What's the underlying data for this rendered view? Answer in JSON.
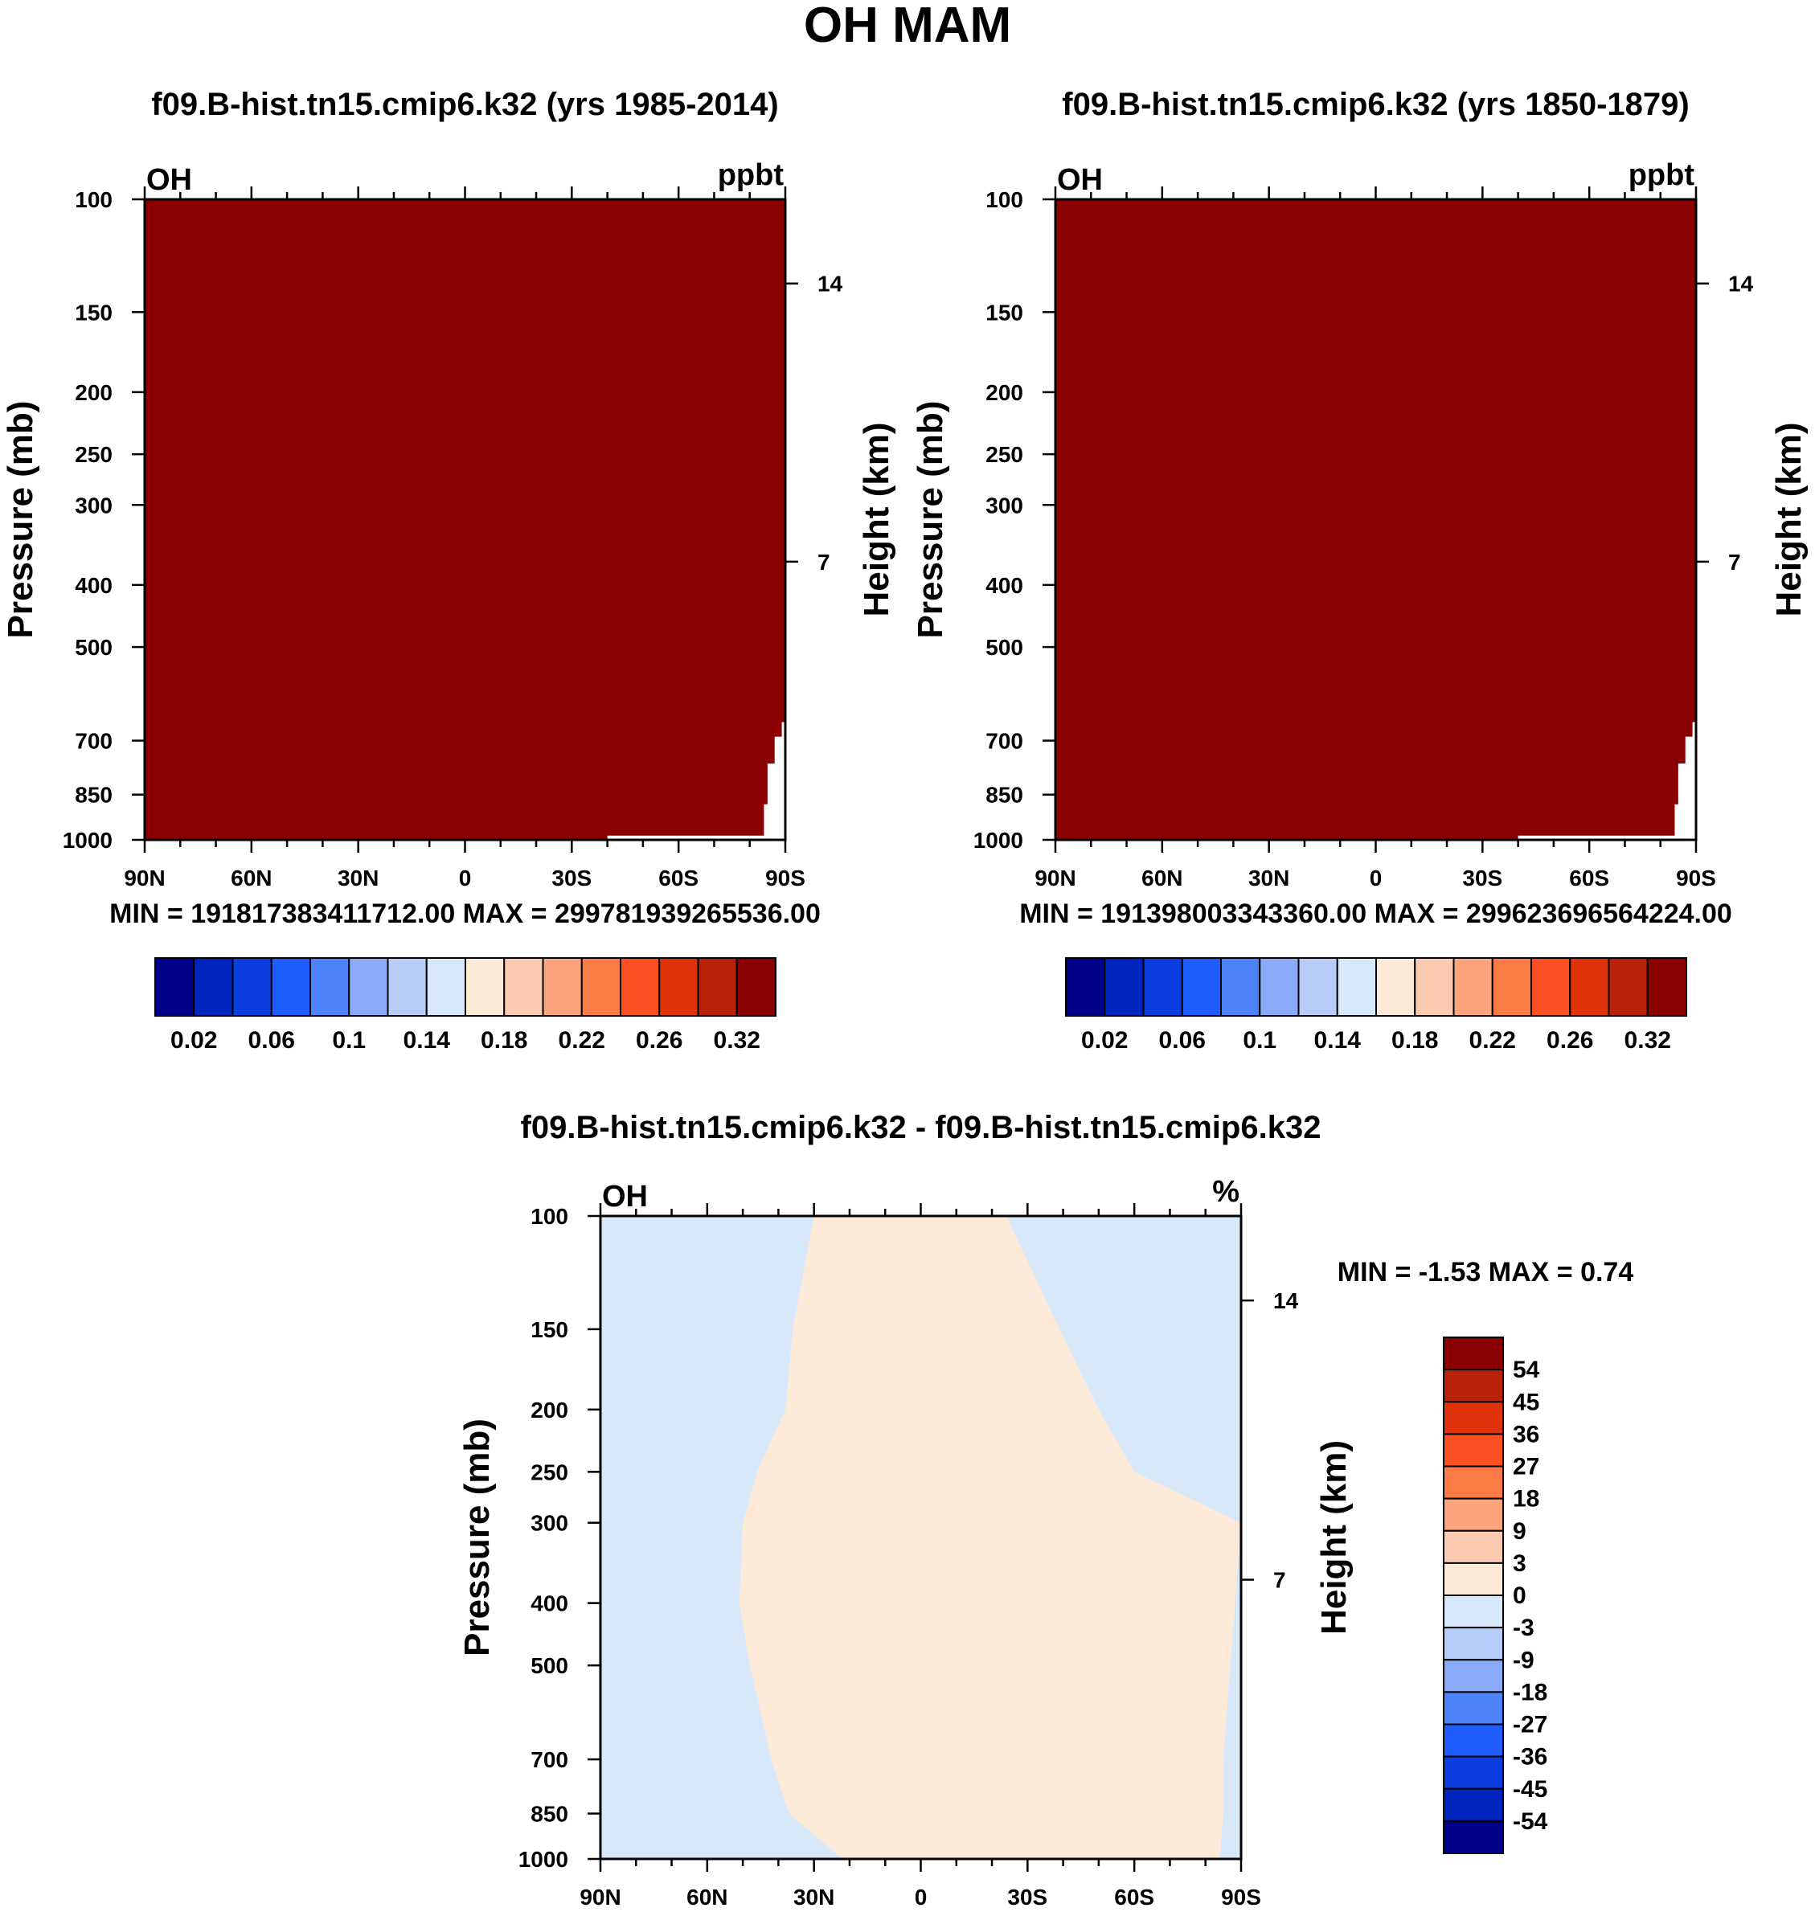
{
  "figure": {
    "title": "OH MAM"
  },
  "chart_data": [
    {
      "type": "heatmap",
      "title": "f09.B-hist.tn15.cmip6.k32 (yrs 1985-2014)",
      "variable": "OH",
      "units": "ppbt",
      "ylabel": "Pressure (mb)",
      "y2label": "Height (km)",
      "x_ticks": [
        "90N",
        "60N",
        "30N",
        "0",
        "30S",
        "60S",
        "90S"
      ],
      "y_ticks": [
        "100",
        "150",
        "200",
        "250",
        "300",
        "400",
        "500",
        "700",
        "850",
        "1000"
      ],
      "y2_ticks": [
        "14",
        "7"
      ],
      "stats": "MIN = 191817383411712.00  MAX = 299781939265536.00",
      "fill_color": "#8b0000",
      "colorbar": {
        "colors": [
          "#00008b",
          "#0024be",
          "#0a3ee0",
          "#1f5cff",
          "#4c82fa",
          "#89aaf8",
          "#b8ccfa",
          "#d8e8fb",
          "#fde9d8",
          "#fccab0",
          "#fba57f",
          "#fc7c48",
          "#fb5022",
          "#e1330b",
          "#b72208",
          "#8b0000"
        ],
        "labels": [
          "0.02",
          "0.06",
          "0.1",
          "0.14",
          "0.18",
          "0.22",
          "0.26",
          "0.32"
        ]
      }
    },
    {
      "type": "heatmap",
      "title": "f09.B-hist.tn15.cmip6.k32 (yrs 1850-1879)",
      "variable": "OH",
      "units": "ppbt",
      "ylabel": "Pressure (mb)",
      "y2label": "Height (km)",
      "x_ticks": [
        "90N",
        "60N",
        "30N",
        "0",
        "30S",
        "60S",
        "90S"
      ],
      "y_ticks": [
        "100",
        "150",
        "200",
        "250",
        "300",
        "400",
        "500",
        "700",
        "850",
        "1000"
      ],
      "y2_ticks": [
        "14",
        "7"
      ],
      "stats": "MIN = 191398003343360.00  MAX = 299623696564224.00",
      "fill_color": "#8b0000",
      "colorbar": {
        "colors": [
          "#00008b",
          "#0024be",
          "#0a3ee0",
          "#1f5cff",
          "#4c82fa",
          "#89aaf8",
          "#b8ccfa",
          "#d8e8fb",
          "#fde9d8",
          "#fccab0",
          "#fba57f",
          "#fc7c48",
          "#fb5022",
          "#e1330b",
          "#b72208",
          "#8b0000"
        ],
        "labels": [
          "0.02",
          "0.06",
          "0.1",
          "0.14",
          "0.18",
          "0.22",
          "0.26",
          "0.32"
        ]
      }
    },
    {
      "type": "heatmap",
      "title": "f09.B-hist.tn15.cmip6.k32 - f09.B-hist.tn15.cmip6.k32",
      "variable": "OH",
      "units": "%",
      "ylabel": "Pressure (mb)",
      "y2label": "Height (km)",
      "x_ticks": [
        "90N",
        "60N",
        "30N",
        "0",
        "30S",
        "60S",
        "90S"
      ],
      "y_ticks": [
        "100",
        "150",
        "200",
        "250",
        "300",
        "400",
        "500",
        "700",
        "850",
        "1000"
      ],
      "y2_ticks": [
        "14",
        "7"
      ],
      "stats": "MIN =  -1.53  MAX =   0.74",
      "background_color": "#d8e8fb",
      "positive_color": "#fde9d8",
      "positive_region_boundary": {
        "left": [
          [
            100,
            30
          ],
          [
            150,
            36
          ],
          [
            200,
            38
          ],
          [
            250,
            46
          ],
          [
            300,
            50
          ],
          [
            400,
            51
          ],
          [
            500,
            48
          ],
          [
            700,
            42
          ],
          [
            850,
            37
          ],
          [
            1000,
            22
          ]
        ],
        "right": [
          [
            100,
            -24
          ],
          [
            150,
            -39
          ],
          [
            200,
            -50
          ],
          [
            250,
            -60
          ],
          [
            300,
            -90
          ],
          [
            700,
            -85
          ],
          [
            850,
            -85
          ],
          [
            1000,
            -84
          ]
        ]
      },
      "colorbar": {
        "colors": [
          "#8b0000",
          "#b72208",
          "#e1330b",
          "#fb5022",
          "#fc7c48",
          "#fba57f",
          "#fccab0",
          "#fde9d8",
          "#d8e8fb",
          "#b8ccfa",
          "#89aaf8",
          "#4c82fa",
          "#1f5cff",
          "#0a3ee0",
          "#0024be",
          "#00008b"
        ],
        "labels": [
          "54",
          "45",
          "36",
          "27",
          "18",
          "9",
          "3",
          "0",
          "-3",
          "-9",
          "-18",
          "-27",
          "-36",
          "-45",
          "-54"
        ]
      }
    }
  ]
}
